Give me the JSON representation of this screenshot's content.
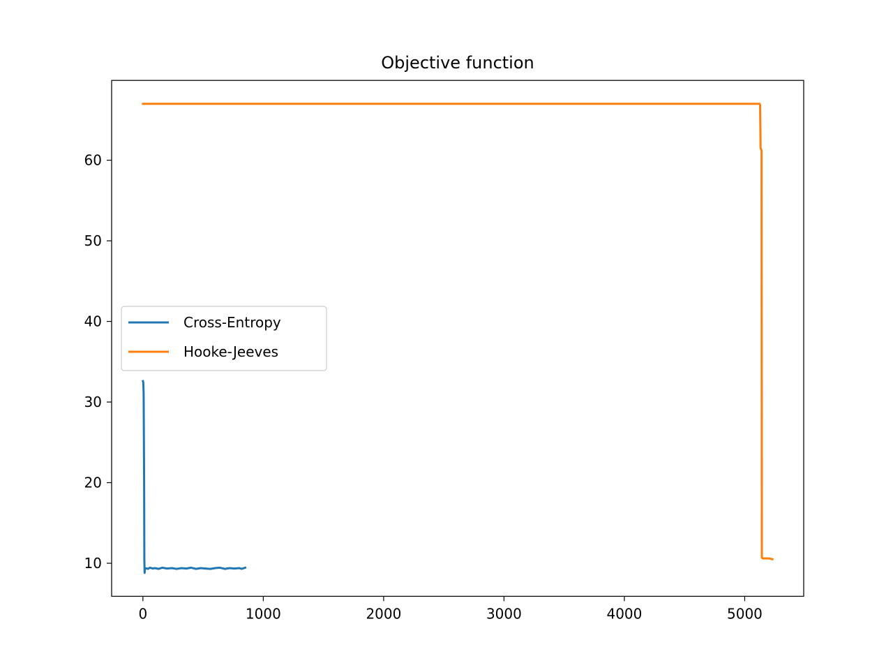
{
  "chart_data": {
    "type": "line",
    "title": "Objective function",
    "xlabel": "",
    "ylabel": "",
    "xlim": [
      -260,
      5490
    ],
    "ylim": [
      5.9,
      69.9
    ],
    "xticks": [
      0,
      1000,
      2000,
      3000,
      4000,
      5000
    ],
    "yticks": [
      10,
      20,
      30,
      40,
      50,
      60
    ],
    "grid": false,
    "legend": {
      "location": "center-left"
    },
    "series": [
      {
        "name": "Cross-Entropy",
        "color": "#1f77b4",
        "x": [
          0,
          3,
          6,
          10,
          12,
          14,
          16,
          20,
          40,
          60,
          80,
          100,
          130,
          160,
          200,
          240,
          280,
          320,
          360,
          400,
          440,
          480,
          520,
          560,
          600,
          640,
          680,
          720,
          760,
          800,
          820,
          850
        ],
        "y": [
          32.6,
          32.4,
          31.0,
          20.0,
          10.5,
          8.8,
          9.2,
          9.4,
          9.3,
          9.45,
          9.35,
          9.4,
          9.3,
          9.45,
          9.35,
          9.4,
          9.3,
          9.4,
          9.35,
          9.45,
          9.3,
          9.4,
          9.35,
          9.3,
          9.4,
          9.45,
          9.3,
          9.4,
          9.35,
          9.4,
          9.3,
          9.45
        ]
      },
      {
        "name": "Hooke-Jeeves",
        "color": "#ff7f0e",
        "x": [
          0,
          5000,
          5125,
          5128,
          5132,
          5140,
          5142,
          5150,
          5200,
          5230
        ],
        "y": [
          67.0,
          67.0,
          67.0,
          66.8,
          61.5,
          61.2,
          10.7,
          10.6,
          10.6,
          10.5
        ]
      }
    ]
  }
}
